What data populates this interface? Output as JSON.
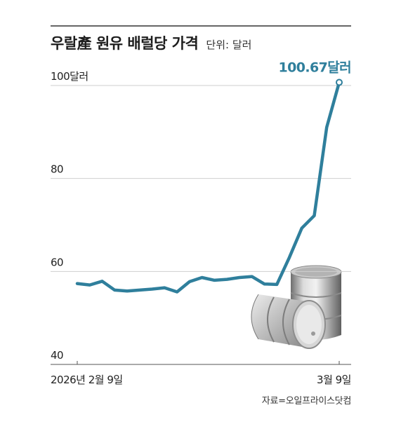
{
  "title": "우랄產 원유 배럴당 가격",
  "unit_label": "단위: 달러",
  "source": "자료=오일프라이스닷컴",
  "colors": {
    "line": "#2f7f9c",
    "grid": "#cfcfcf",
    "axis": "#555555"
  },
  "chart_data": {
    "type": "line",
    "title": "우랄產 원유 배럴당 가격",
    "ylim": [
      40,
      100
    ],
    "y_ticks": [
      {
        "value": 100,
        "label": "100달러"
      },
      {
        "value": 80,
        "label": "80"
      },
      {
        "value": 60,
        "label": "60"
      },
      {
        "value": 40,
        "label": "40"
      }
    ],
    "x_tick_labels": [
      "2026년 2월 9일",
      "3월 9일"
    ],
    "last_point_label": "100.67달러",
    "series": [
      {
        "values": [
          57.4,
          57.1,
          57.9,
          56.0,
          55.8,
          56.0,
          56.2,
          56.5,
          55.6,
          57.8,
          58.7,
          58.1,
          58.3,
          58.7,
          58.9,
          57.3,
          57.2,
          63.0,
          69.3,
          72.0,
          91.0,
          100.67
        ]
      }
    ]
  }
}
